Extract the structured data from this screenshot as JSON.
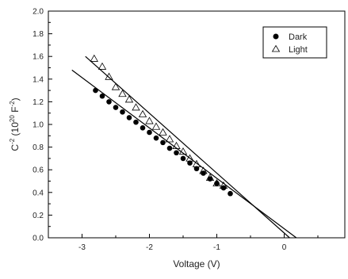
{
  "chart_data": {
    "type": "scatter",
    "title": "",
    "xlabel": "Voltage (V)",
    "ylabel_main": "C",
    "ylabel_sup1": "-2",
    "ylabel_mid": " (10",
    "ylabel_sup2": "20",
    "ylabel_mid2": " F",
    "ylabel_sup3": "-2",
    "ylabel_end": ")",
    "xlim": [
      -3.5,
      0.9
    ],
    "ylim": [
      0.0,
      2.0
    ],
    "x_ticks": [
      -3,
      -2,
      -1,
      0
    ],
    "x_tick_labels": [
      "-3",
      "-2",
      "-1",
      "0"
    ],
    "y_ticks": [
      0.0,
      0.2,
      0.4,
      0.6,
      0.8,
      1.0,
      1.2,
      1.4,
      1.6,
      1.8,
      2.0
    ],
    "y_tick_labels": [
      "0.0",
      "0.2",
      "0.4",
      "0.6",
      "0.8",
      "1.0",
      "1.2",
      "1.4",
      "1.6",
      "1.8",
      "2.0"
    ],
    "grid": false,
    "legend_position": "top-right",
    "series": [
      {
        "name": "Dark",
        "marker": "filled-circle",
        "color": "#000000",
        "x": [
          -2.8,
          -2.7,
          -2.6,
          -2.5,
          -2.4,
          -2.3,
          -2.2,
          -2.1,
          -2.0,
          -1.9,
          -1.8,
          -1.7,
          -1.6,
          -1.5,
          -1.4,
          -1.3,
          -1.2,
          -1.1,
          -1.0,
          -0.9,
          -0.8
        ],
        "y": [
          1.3,
          1.25,
          1.2,
          1.15,
          1.11,
          1.06,
          1.02,
          0.97,
          0.93,
          0.88,
          0.84,
          0.79,
          0.75,
          0.7,
          0.66,
          0.61,
          0.57,
          0.52,
          0.48,
          0.44,
          0.39
        ]
      },
      {
        "name": "Light",
        "marker": "open-triangle",
        "color": "#000000",
        "x": [
          -2.82,
          -2.7,
          -2.6,
          -2.5,
          -2.4,
          -2.3,
          -2.2,
          -2.1,
          -2.0,
          -1.9,
          -1.8,
          -1.7,
          -1.6,
          -1.5,
          -1.4,
          -1.3,
          -1.2,
          -1.1,
          -1.0,
          -0.9
        ],
        "y": [
          1.58,
          1.51,
          1.42,
          1.33,
          1.27,
          1.22,
          1.15,
          1.09,
          1.03,
          0.98,
          0.93,
          0.87,
          0.81,
          0.76,
          0.7,
          0.65,
          0.59,
          0.53,
          0.48,
          0.46
        ]
      }
    ],
    "fit_lines": [
      {
        "name": "dark-fit",
        "x": [
          -3.15,
          0.18
        ],
        "y": [
          1.48,
          0.0
        ]
      },
      {
        "name": "light-fit",
        "x": [
          -2.95,
          0.08
        ],
        "y": [
          1.6,
          0.0
        ]
      }
    ]
  }
}
